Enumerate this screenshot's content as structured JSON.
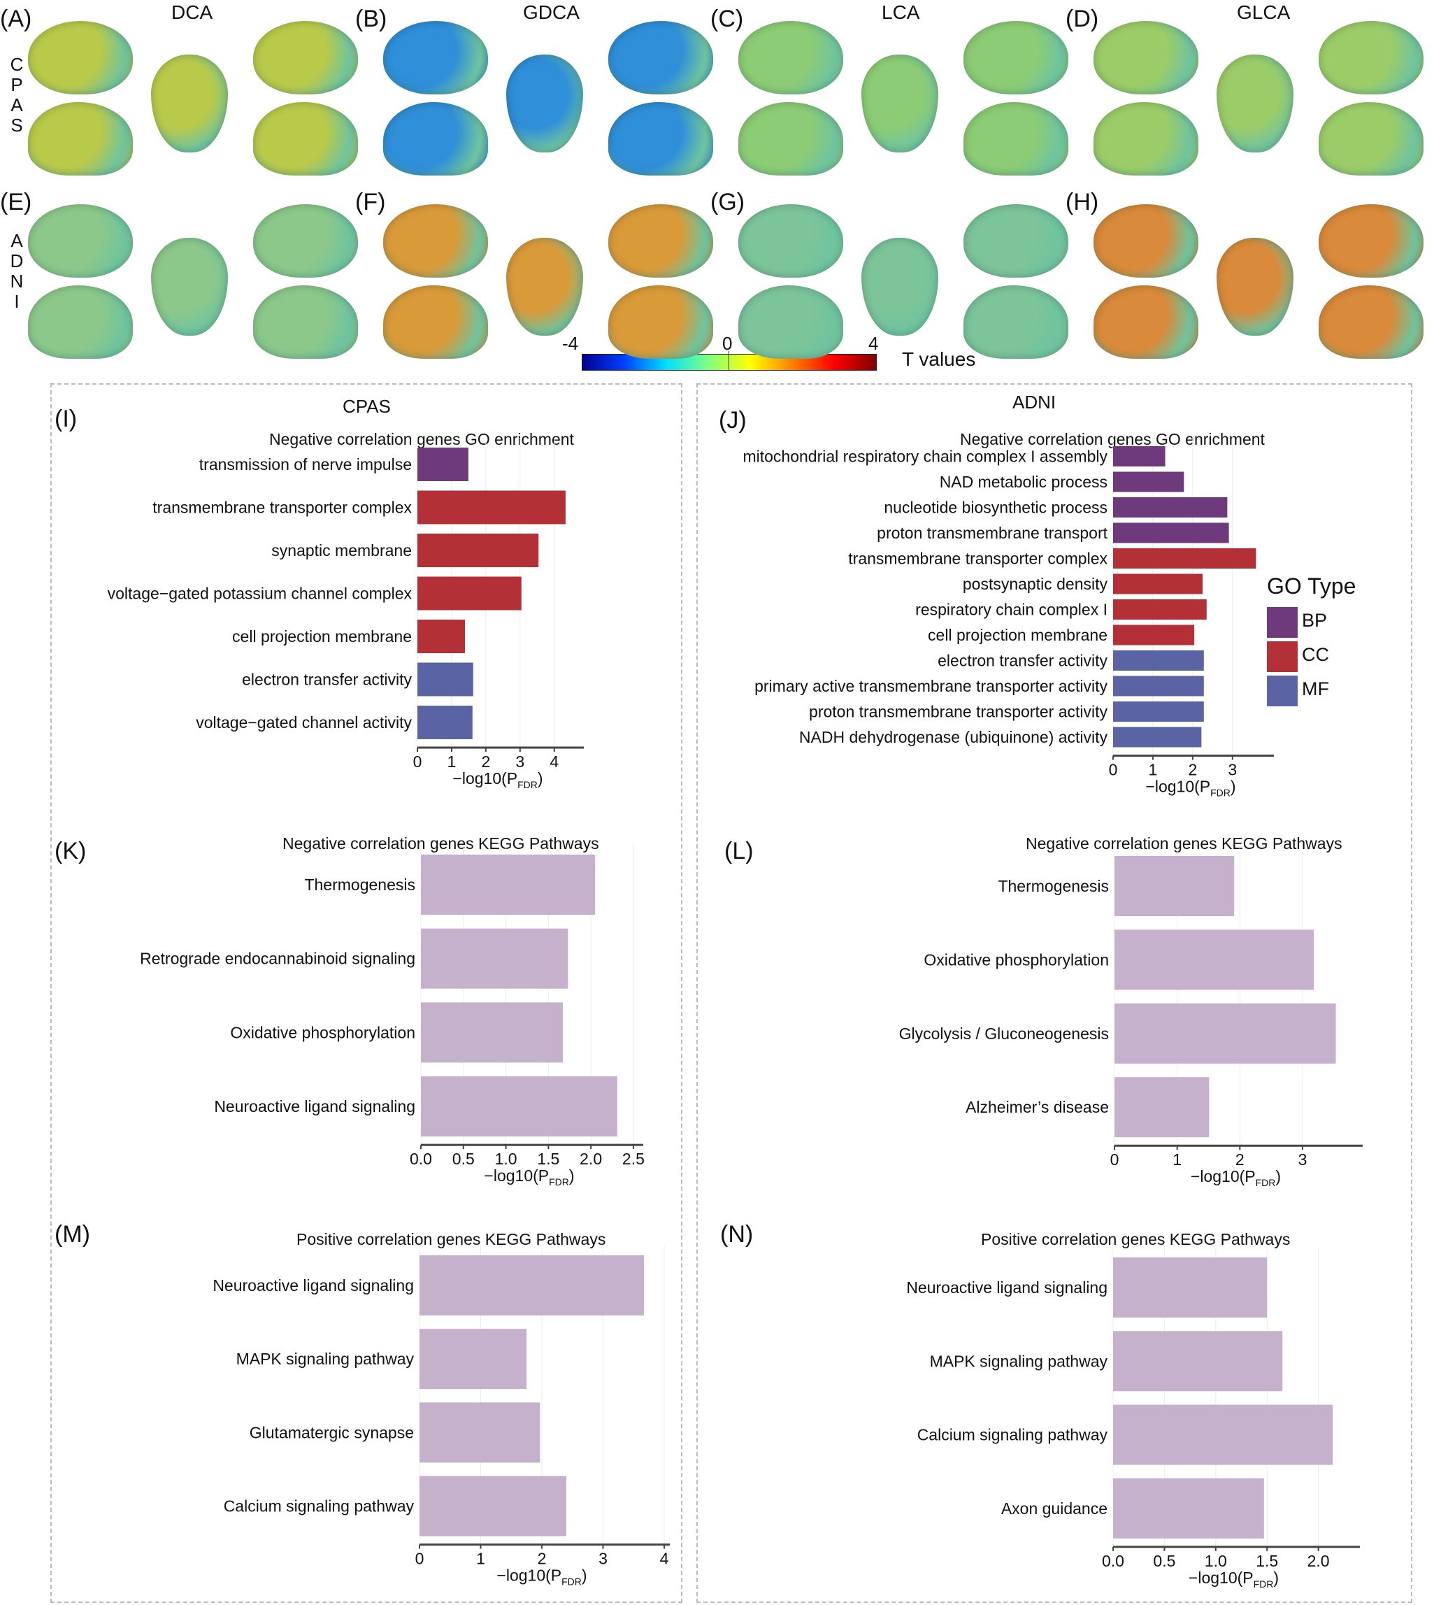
{
  "brain_maps": {
    "columns": [
      "DCA",
      "GDCA",
      "LCA",
      "GLCA"
    ],
    "rows": [
      {
        "name": "CPAS",
        "panels": [
          "(A)",
          "(B)",
          "(C)",
          "(D)"
        ]
      },
      {
        "name": "ADNI",
        "panels": [
          "(E)",
          "(F)",
          "(G)",
          "(H)"
        ]
      }
    ],
    "dominant_tone": {
      "A": "#b9c94a",
      "B": "#2f8fd8",
      "C": "#8ccc74",
      "D": "#9ccc68",
      "E": "#8cc88a",
      "F": "#d99a3a",
      "G": "#7cc49a",
      "H": "#d98a3a"
    },
    "colorbar": {
      "label": "T values",
      "min_label": "-4",
      "mid_label": "0",
      "max_label": "4",
      "range": [
        -4,
        4
      ],
      "stops": [
        "#00008f",
        "#0040ff",
        "#00e0ff",
        "#80ff80",
        "#ffff00",
        "#ff8000",
        "#ff0000",
        "#800000"
      ]
    }
  },
  "sections": {
    "cpas_title": "CPAS",
    "adni_title": "ADNI"
  },
  "go_legend": {
    "title": "GO Type",
    "items": [
      {
        "label": "BP",
        "color": "#6e3a7c"
      },
      {
        "label": "CC",
        "color": "#b23036"
      },
      {
        "label": "MF",
        "color": "#5a64a4"
      }
    ]
  },
  "chart_data": [
    {
      "panel": "(I)",
      "type": "bar",
      "orientation": "horizontal",
      "title": "Negative correlation genes GO enrichment",
      "xlabel": "-log10(P_FDR)",
      "xlabel_main": "−log10(P",
      "xlabel_sub": "FDR",
      "xlim": [
        0,
        4.7
      ],
      "xticks": [
        0,
        1,
        2,
        3,
        4
      ],
      "xtick_labels": [
        "0",
        "1",
        "2",
        "3",
        "4"
      ],
      "grid": true,
      "categories": [
        "transmission of nerve impulse",
        "transmembrane transporter complex",
        "synaptic membrane",
        "voltage−gated potassium channel complex",
        "cell projection membrane",
        "electron transfer activity",
        "voltage−gated channel activity"
      ],
      "values": [
        1.49,
        4.33,
        3.54,
        3.04,
        1.39,
        1.63,
        1.61
      ],
      "groups": [
        "BP",
        "CC",
        "CC",
        "CC",
        "CC",
        "MF",
        "MF"
      ]
    },
    {
      "panel": "(J)",
      "type": "bar",
      "orientation": "horizontal",
      "title": "Negative correlation genes GO enrichment",
      "xlabel": "-log10(P_FDR)",
      "xlabel_main": "−log10(P",
      "xlabel_sub": "FDR",
      "xlim": [
        0,
        3.9
      ],
      "xticks": [
        0,
        1,
        2,
        3
      ],
      "xtick_labels": [
        "0",
        "1",
        "2",
        "3"
      ],
      "grid": true,
      "categories": [
        "mitochondrial respiratory chain complex I assembly",
        "NAD metabolic process",
        "nucleotide biosynthetic process",
        "proton transmembrane transport",
        "transmembrane transporter complex",
        "postsynaptic density",
        "respiratory chain complex I",
        "cell projection membrane",
        "electron transfer activity",
        "primary active transmembrane transporter activity",
        "proton transmembrane transporter activity",
        "NADH dehydrogenase (ubiquinone) activity"
      ],
      "values": [
        1.31,
        1.78,
        2.87,
        2.91,
        3.59,
        2.25,
        2.35,
        2.04,
        2.28,
        2.28,
        2.28,
        2.22
      ],
      "groups": [
        "BP",
        "BP",
        "BP",
        "BP",
        "CC",
        "CC",
        "CC",
        "CC",
        "MF",
        "MF",
        "MF",
        "MF"
      ],
      "legend": "right"
    },
    {
      "panel": "(K)",
      "type": "bar",
      "orientation": "horizontal",
      "title": "Negative correlation genes KEGG Pathways",
      "xlabel": "-log10(P_FDR)",
      "xlabel_main": "−log10(P",
      "xlabel_sub": "FDR",
      "xlim": [
        0,
        2.55
      ],
      "xticks": [
        0,
        0.5,
        1,
        1.5,
        2,
        2.5
      ],
      "xtick_labels": [
        "0.0",
        "0.5",
        "1.0",
        "1.5",
        "2.0",
        "2.5"
      ],
      "grid": true,
      "categories": [
        "Thermogenesis",
        "Retrograde endocannabinoid signaling",
        "Oxidative phosphorylation",
        "Neuroactive ligand signaling"
      ],
      "values": [
        2.05,
        1.73,
        1.67,
        2.31
      ],
      "color": "#c6b1cc"
    },
    {
      "panel": "(L)",
      "type": "bar",
      "orientation": "horizontal",
      "title": "Negative correlation genes KEGG Pathways",
      "xlabel": "-log10(P_FDR)",
      "xlabel_main": "−log10(P",
      "xlabel_sub": "FDR",
      "xlim": [
        0,
        3.87
      ],
      "xticks": [
        0,
        1,
        2,
        3
      ],
      "xtick_labels": [
        "0",
        "1",
        "2",
        "3"
      ],
      "grid": true,
      "categories": [
        "Thermogenesis",
        "Oxidative phosphorylation",
        "Glycolysis / Gluconeogenesis",
        "Alzheimer’s disease"
      ],
      "values": [
        1.91,
        3.18,
        3.53,
        1.51
      ],
      "color": "#c6b1cc"
    },
    {
      "panel": "(M)",
      "type": "bar",
      "orientation": "horizontal",
      "title": "Positive correlation genes KEGG Pathways",
      "xlabel": "-log10(P_FDR)",
      "xlabel_main": "−log10(P",
      "xlabel_sub": "FDR",
      "xlim": [
        0,
        4.0
      ],
      "xticks": [
        0,
        1,
        2,
        3,
        4
      ],
      "xtick_labels": [
        "0",
        "1",
        "2",
        "3",
        "4"
      ],
      "grid": true,
      "categories": [
        "Neuroactive ligand signaling",
        "MAPK signaling pathway",
        "Glutamatergic synapse",
        "Calcium signaling pathway"
      ],
      "values": [
        3.67,
        1.75,
        1.97,
        2.4
      ],
      "color": "#c6b1cc"
    },
    {
      "panel": "(N)",
      "type": "bar",
      "orientation": "horizontal",
      "title": "Positive correlation genes KEGG Pathways",
      "xlabel": "-log10(P_FDR)",
      "xlabel_main": "−log10(P",
      "xlabel_sub": "FDR",
      "xlim": [
        0,
        2.35
      ],
      "xticks": [
        0,
        0.5,
        1,
        1.5,
        2
      ],
      "xtick_labels": [
        "0.0",
        "0.5",
        "1.0",
        "1.5",
        "2.0"
      ],
      "grid": true,
      "categories": [
        "Neuroactive ligand signaling",
        "MAPK signaling pathway",
        "Calcium signaling pathway",
        "Axon guidance"
      ],
      "values": [
        1.5,
        1.65,
        2.14,
        1.47
      ],
      "color": "#c6b1cc"
    }
  ]
}
